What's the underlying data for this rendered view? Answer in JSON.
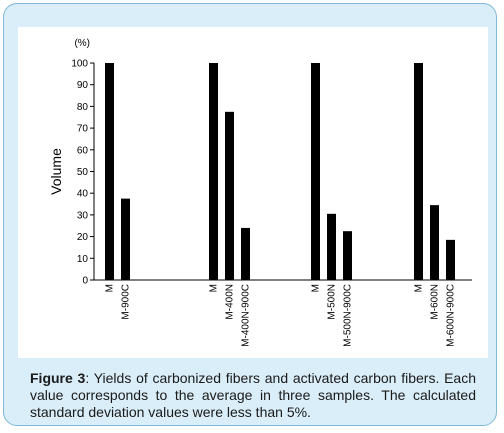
{
  "caption": {
    "label": "Figure 3",
    "text": ": Yields of carbonized fibers and activated carbon fibers. Each value corresponds to the average in three samples. The calculated standard deviation values were less than 5%."
  },
  "chart_data": {
    "type": "bar",
    "title": "",
    "xlabel": "",
    "ylabel": "Volume",
    "unit": "(%)",
    "ylim": [
      0,
      100
    ],
    "yticks": [
      0,
      10,
      20,
      30,
      40,
      50,
      60,
      70,
      80,
      90,
      100
    ],
    "grid": false,
    "legend": "none",
    "bar_color": "#000000",
    "groups": [
      {
        "categories": [
          "M",
          "M-900C"
        ],
        "values": [
          100,
          37.5
        ]
      },
      {
        "categories": [
          "M",
          "M-400N",
          "M-400N-900C"
        ],
        "values": [
          100,
          77.5,
          24
        ]
      },
      {
        "categories": [
          "M",
          "M-500N",
          "M-500N-900C"
        ],
        "values": [
          100,
          30.5,
          22.5
        ]
      },
      {
        "categories": [
          "M",
          "M-600N",
          "M-600N-900C"
        ],
        "values": [
          100,
          34.5,
          18.5
        ]
      }
    ]
  }
}
